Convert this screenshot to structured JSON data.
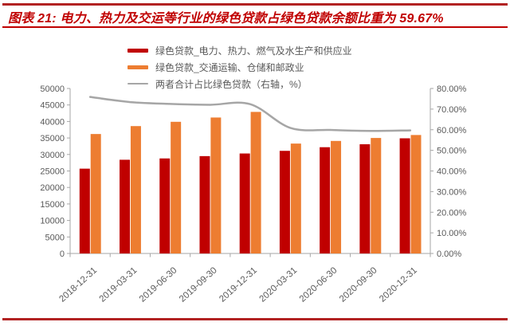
{
  "title": {
    "text": "图表 21:  电力、热力及交运等行业的绿色贷款占绿色贷款余额比重为 59.67%",
    "highlight_value": "59.67%"
  },
  "colors": {
    "title_red": "#C00000",
    "rule_dark_red": "#B22222",
    "rule_bright_red": "#C00000",
    "bar_electricity": "#C00000",
    "bar_transport": "#ED7D31",
    "ratio_line": "#A6A6A6",
    "axis_line": "#A6A6A6",
    "axis_text": "#595959"
  },
  "chart_data": {
    "type": "bar+line",
    "categories": [
      "2018-12-31",
      "2019-03-31",
      "2019-06-30",
      "2019-09-30",
      "2019-12-31",
      "2020-03-31",
      "2020-06-30",
      "2020-09-30",
      "2020-12-31"
    ],
    "series": [
      {
        "name": "绿色贷款_电力、热力、燃气及水生产和供应业",
        "type": "bar",
        "axis": "left",
        "color": "#C00000",
        "values": [
          25700,
          28400,
          28800,
          29500,
          30300,
          31100,
          32200,
          33100,
          34900
        ]
      },
      {
        "name": "绿色贷款_交通运输、仓储和邮政业",
        "type": "bar",
        "axis": "left",
        "color": "#ED7D31",
        "values": [
          36200,
          38600,
          39900,
          41200,
          42900,
          33300,
          34100,
          35000,
          35900
        ]
      },
      {
        "name": "两者合计占比绿色贷款（右轴，%）",
        "type": "line",
        "axis": "right",
        "color": "#A6A6A6",
        "values": [
          75.9,
          73.4,
          72.5,
          72.1,
          72.4,
          60.9,
          59.9,
          59.4,
          59.67
        ]
      }
    ],
    "left_axis": {
      "min": 0,
      "max": 50000,
      "step": 5000,
      "tick_labels": [
        "0",
        "5000",
        "10000",
        "15000",
        "20000",
        "25000",
        "30000",
        "35000",
        "40000",
        "45000",
        "50000"
      ]
    },
    "right_axis": {
      "min": 0,
      "max": 80,
      "step": 10,
      "tick_labels": [
        "0.00%",
        "10.00%",
        "20.00%",
        "30.00%",
        "40.00%",
        "50.00%",
        "60.00%",
        "70.00%",
        "80.00%"
      ]
    },
    "grid": false,
    "legend_position": "top-left"
  }
}
